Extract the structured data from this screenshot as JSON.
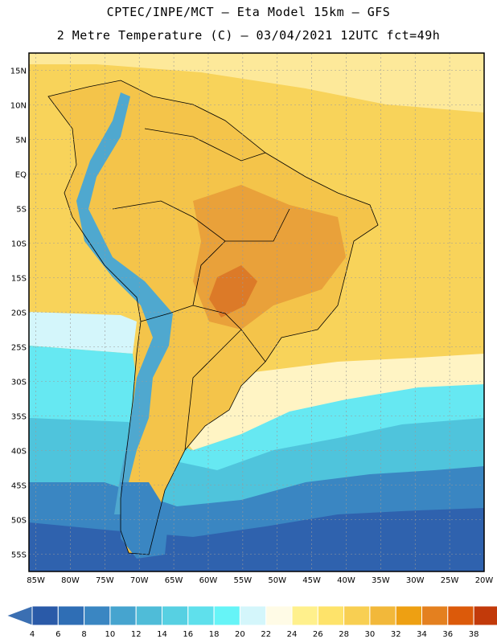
{
  "header": {
    "line1": "CPTEC/INPE/MCT –  Eta Model 15km – GFS",
    "line2": "2 Metre Temperature (C) – 03/04/2021 12UTC fct=49h"
  },
  "axes": {
    "lat_labels": [
      "15N",
      "10N",
      "5N",
      "EQ",
      "5S",
      "10S",
      "15S",
      "20S",
      "25S",
      "30S",
      "35S",
      "40S",
      "45S",
      "50S",
      "55S"
    ],
    "lon_labels": [
      "85W",
      "80W",
      "75W",
      "70W",
      "65W",
      "60W",
      "55W",
      "50W",
      "45W",
      "40W",
      "35W",
      "30W",
      "25W",
      "20W"
    ]
  },
  "colorbar": {
    "labels": [
      "4",
      "6",
      "8",
      "10",
      "12",
      "14",
      "16",
      "18",
      "20",
      "22",
      "24",
      "26",
      "28",
      "30",
      "32",
      "34",
      "36",
      "38"
    ],
    "colors": [
      "#2a5aa8",
      "#2f6eb5",
      "#3a86c2",
      "#46a4cf",
      "#4fbcd8",
      "#57d0e2",
      "#5fe0ec",
      "#66f4f7",
      "#d4f6fb",
      "#fffbe6",
      "#fff08c",
      "#fee36a",
      "#f8cf52",
      "#f2b83a",
      "#eea012",
      "#e4801f",
      "#dc5a0a",
      "#c23a0a"
    ],
    "low_color": "#3b6fb2",
    "high_color": "#c04a16"
  },
  "map_colors": {
    "ocean_north": "#fde99a",
    "ocean_warm": "#f8d35a",
    "land_warm": "#f4c44a",
    "land_hot": "#e9a13a",
    "land_hottest": "#dc7a28",
    "mid_light": "#fff4c4",
    "cold_1": "#d4f6fb",
    "cold_2": "#66e8f2",
    "cold_3": "#4fc4dc",
    "cold_4": "#3a86c2",
    "cold_5": "#2f62ae",
    "andes": "#4fa8cf"
  }
}
